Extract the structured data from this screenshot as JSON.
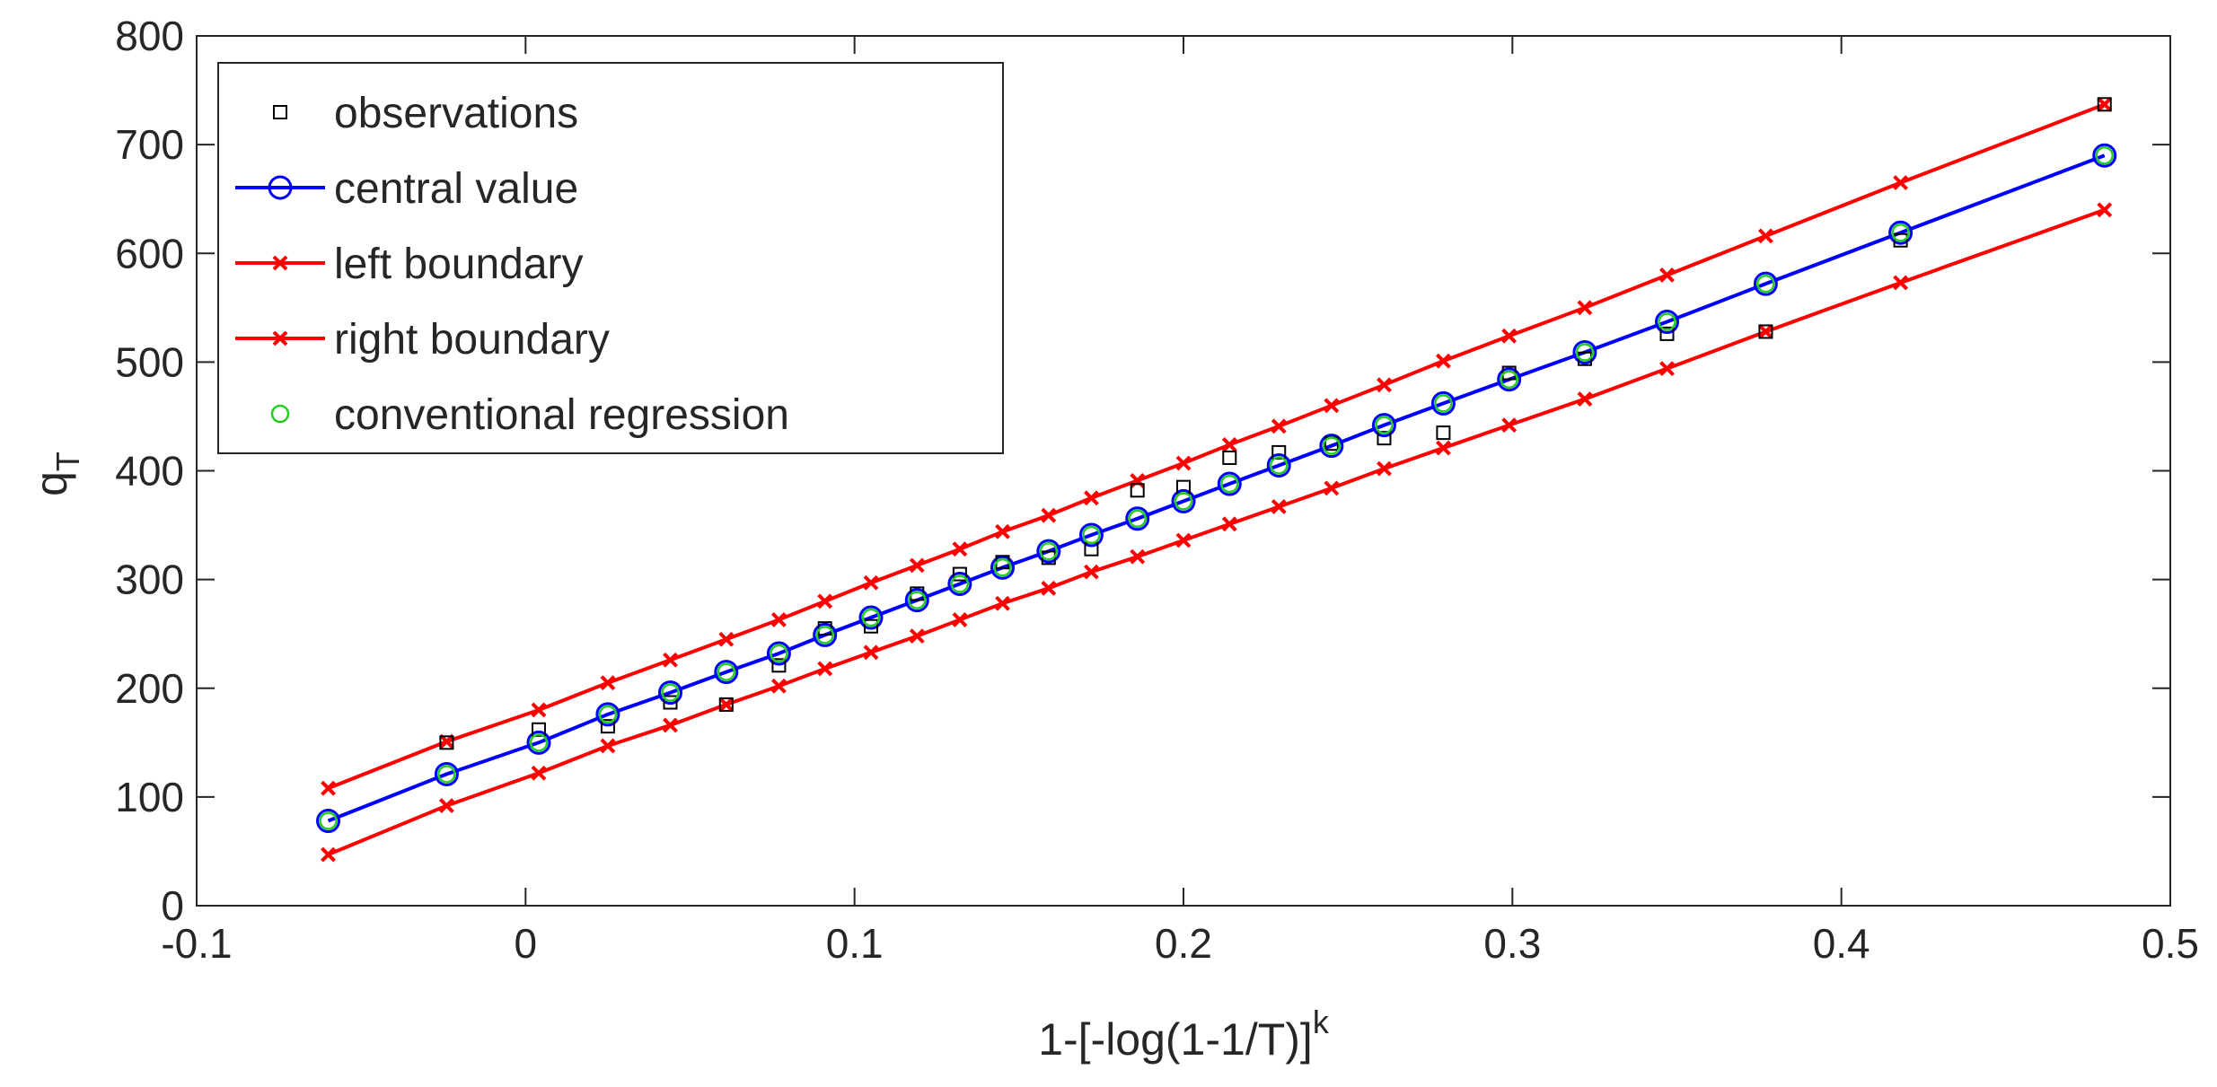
{
  "chart_data": {
    "type": "line",
    "title": "",
    "xlabel": "1-[-log(1-1/T)]",
    "xlabel_superscript": "k",
    "ylabel": "q",
    "ylabel_subscript": "T",
    "xlim": [
      -0.1,
      0.5
    ],
    "ylim": [
      0,
      800
    ],
    "xticks": [
      -0.1,
      0,
      0.1,
      0.2,
      0.3,
      0.4,
      0.5
    ],
    "xtick_labels": [
      "-0.1",
      "0",
      "0.1",
      "0.2",
      "0.3",
      "0.4",
      "0.5"
    ],
    "yticks": [
      0,
      100,
      200,
      300,
      400,
      500,
      600,
      700,
      800
    ],
    "ytick_labels": [
      "0",
      "100",
      "200",
      "300",
      "400",
      "500",
      "600",
      "700",
      "800"
    ],
    "grid": false,
    "legend_position": "top-left",
    "colors": {
      "observations": "#000000",
      "central": "#0000ff",
      "boundary": "#ff0000",
      "conventional": "#22cc22",
      "axis": "#262626"
    },
    "series": [
      {
        "name": "observations",
        "marker": "square",
        "line": false,
        "x": [
          -0.024,
          0.004,
          0.025,
          0.044,
          0.061,
          0.077,
          0.091,
          0.105,
          0.119,
          0.132,
          0.145,
          0.159,
          0.172,
          0.186,
          0.2,
          0.214,
          0.229,
          0.245,
          0.261,
          0.279,
          0.299,
          0.322,
          0.347,
          0.377,
          0.418,
          0.48
        ],
        "y": [
          150,
          162,
          165,
          187,
          185,
          221,
          255,
          257,
          287,
          305,
          316,
          320,
          328,
          382,
          385,
          412,
          417,
          425,
          430,
          435,
          490,
          503,
          526,
          528,
          612,
          737
        ]
      },
      {
        "name": "central value",
        "marker": "circle",
        "line": true,
        "x": [
          -0.06,
          -0.024,
          0.004,
          0.025,
          0.044,
          0.061,
          0.077,
          0.091,
          0.105,
          0.119,
          0.132,
          0.145,
          0.159,
          0.172,
          0.186,
          0.2,
          0.214,
          0.229,
          0.245,
          0.261,
          0.279,
          0.299,
          0.322,
          0.347,
          0.377,
          0.418,
          0.48
        ],
        "y": [
          78,
          121,
          150,
          176,
          196,
          215,
          232,
          249,
          265,
          281,
          296,
          311,
          326,
          341,
          356,
          372,
          388,
          405,
          423,
          442,
          462,
          484,
          509,
          537,
          572,
          619,
          690
        ]
      },
      {
        "name": "left boundary",
        "marker": "x",
        "line": true,
        "x": [
          -0.06,
          -0.024,
          0.004,
          0.025,
          0.044,
          0.061,
          0.077,
          0.091,
          0.105,
          0.119,
          0.132,
          0.145,
          0.159,
          0.172,
          0.186,
          0.2,
          0.214,
          0.229,
          0.245,
          0.261,
          0.279,
          0.299,
          0.322,
          0.347,
          0.377,
          0.418,
          0.48
        ],
        "y": [
          108,
          151,
          180,
          205,
          226,
          245,
          263,
          280,
          297,
          313,
          328,
          344,
          359,
          375,
          391,
          407,
          424,
          441,
          460,
          479,
          501,
          524,
          550,
          580,
          616,
          665,
          737
        ]
      },
      {
        "name": "right boundary",
        "marker": "x",
        "line": true,
        "x": [
          -0.06,
          -0.024,
          0.004,
          0.025,
          0.044,
          0.061,
          0.077,
          0.091,
          0.105,
          0.119,
          0.132,
          0.145,
          0.159,
          0.172,
          0.186,
          0.2,
          0.214,
          0.229,
          0.245,
          0.261,
          0.279,
          0.299,
          0.322,
          0.347,
          0.377,
          0.418,
          0.48
        ],
        "y": [
          47,
          92,
          122,
          147,
          166,
          185,
          202,
          218,
          233,
          248,
          263,
          278,
          292,
          307,
          321,
          336,
          351,
          367,
          384,
          402,
          421,
          442,
          466,
          494,
          528,
          573,
          640
        ]
      },
      {
        "name": "conventional regression",
        "marker": "circle",
        "line": false,
        "x": [
          -0.06,
          -0.024,
          0.004,
          0.025,
          0.044,
          0.061,
          0.077,
          0.091,
          0.105,
          0.119,
          0.132,
          0.145,
          0.159,
          0.172,
          0.186,
          0.2,
          0.214,
          0.229,
          0.245,
          0.261,
          0.279,
          0.299,
          0.322,
          0.347,
          0.377,
          0.418,
          0.48
        ],
        "y": [
          78,
          121,
          150,
          176,
          196,
          215,
          232,
          249,
          265,
          281,
          296,
          311,
          326,
          341,
          356,
          372,
          388,
          405,
          423,
          442,
          462,
          484,
          509,
          537,
          572,
          619,
          690
        ]
      }
    ]
  }
}
